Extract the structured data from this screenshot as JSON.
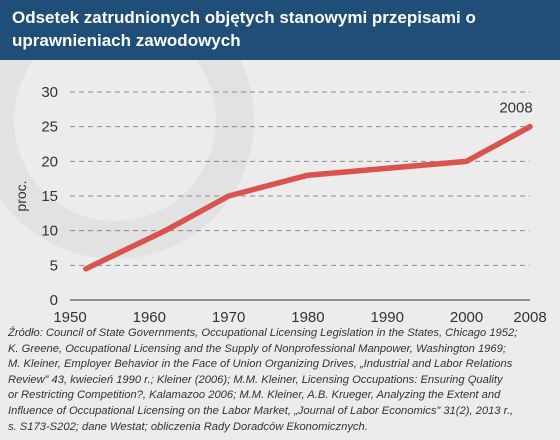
{
  "title": "Odsetek zatrudnionych objętych stanowymi przepisami o uprawnieniach zawodowych",
  "source_lines": [
    "Źródło: Council of State Governments, Occupational Licensing Legislation in the States, Chicago 1952;",
    "K. Greene, Occupational Licensing and the Supply of Nonprofessional Manpower, Washington 1969;",
    "M. Kleiner, Employer Behavior in the Face of Union Organizing Drives, „Industrial and Labor Relations",
    "Review” 43, kwiecień 1990 r.; Kleiner (2006); M.M. Kleiner, Licensing Occupations: Ensuring Quality",
    "or Restricting Competition?, Kalamazoo 2006; M.M. Kleiner, A.B. Krueger, Analyzing the Extent and",
    "Influence of Occupational Licensing on the Labor Market, „Journal of Labor Economics” 31(2), 2013 r.,",
    "s. S173-S202; dane Westat; obliczenia Rady Doradców Ekonomicznych."
  ],
  "colors": {
    "title_bg": "#1f4e79",
    "line": "#d9534f",
    "grid": "#8c8c8c",
    "background": "#ececec"
  },
  "chart_data": {
    "type": "line",
    "title": "Odsetek zatrudnionych objętych stanowymi przepisami o uprawnieniach zawodowych",
    "xlabel": "",
    "ylabel": "proc.",
    "xlim": [
      1950,
      2008
    ],
    "ylim": [
      0,
      30
    ],
    "x_ticks": [
      "1950",
      "1960",
      "1970",
      "1980",
      "1990",
      "2000",
      "2008"
    ],
    "y_ticks": [
      "0",
      "5",
      "10",
      "15",
      "20",
      "25",
      "30"
    ],
    "grid": true,
    "grid_style": "dashed",
    "series": [
      {
        "x": [
          1952,
          1962,
          1970,
          1980,
          1990,
          2000,
          2008
        ],
        "y": [
          4.5,
          10,
          15,
          18,
          19,
          20,
          25
        ]
      }
    ],
    "annotations": [
      {
        "text": "2008",
        "x": 2008,
        "y": 25
      }
    ]
  }
}
